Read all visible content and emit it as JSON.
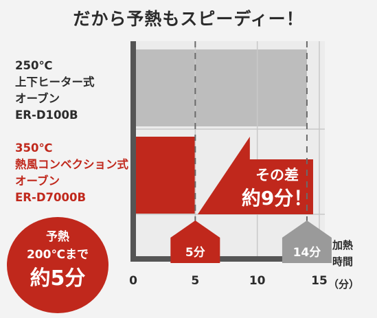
{
  "title": "だから予熱もスピーディー！",
  "ovens": [
    {
      "lines": [
        "250℃",
        "上下ヒーター式",
        "オーブン",
        "ER-D100B"
      ]
    },
    {
      "lines": [
        "350℃",
        "熱風コンベクション式",
        "オーブン",
        "ER-D7000B"
      ]
    }
  ],
  "badge": {
    "line1": "予熱",
    "line2": "200℃まで",
    "line3": "約5分"
  },
  "callout": {
    "line1": "その差",
    "line2": "約9分！"
  },
  "x_axis_title": [
    "加熱",
    "時間",
    "（分）"
  ],
  "colors": {
    "gray_bar": "#bdbdbd",
    "red_bar": "#c0281c",
    "axis": "#555555",
    "gray_marker": "#9a9a9a"
  },
  "chart_data": {
    "type": "bar",
    "orientation": "horizontal",
    "categories": [
      "250℃ 上下ヒーター式 オーブン ER-D100B",
      "350℃ 熱風コンベクション式 オーブン ER-D7000B"
    ],
    "values": [
      14,
      5
    ],
    "xlim": [
      0,
      15
    ],
    "x_ticks": [
      0,
      5,
      10,
      15
    ],
    "grid": true,
    "markers": [
      {
        "value": 5,
        "label": "5分"
      },
      {
        "value": 14,
        "label": "14分"
      }
    ]
  }
}
